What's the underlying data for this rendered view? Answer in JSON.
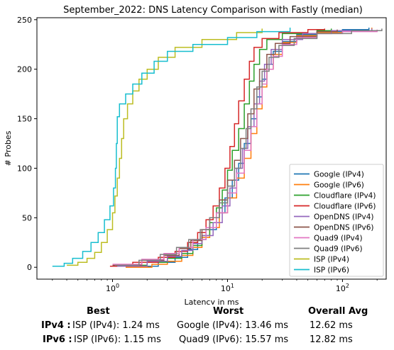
{
  "chart_data": {
    "type": "line",
    "title": "September_2022: DNS Latency Comparison with Fastly (median)",
    "xlabel": "Latency in ms",
    "ylabel": "# Probes",
    "xscale": "log",
    "xlim": [
      0.22,
      240
    ],
    "ylim": [
      -12,
      252
    ],
    "yticks": [
      0,
      50,
      100,
      150,
      200,
      250
    ],
    "xticks": [
      {
        "value": 1,
        "label": "10^0"
      },
      {
        "value": 10,
        "label": "10^1"
      },
      {
        "value": 100,
        "label": "10^2"
      }
    ],
    "grid": false,
    "legend_position": "lower-right",
    "series": [
      {
        "name": "Google (IPv4)",
        "color": "#1f77b4",
        "points": [
          [
            1.5,
            1
          ],
          [
            2.5,
            5
          ],
          [
            3.5,
            10
          ],
          [
            4.5,
            18
          ],
          [
            5.5,
            28
          ],
          [
            6.5,
            38
          ],
          [
            8,
            55
          ],
          [
            9.5,
            70
          ],
          [
            11,
            88
          ],
          [
            12.5,
            105
          ],
          [
            14,
            125
          ],
          [
            16,
            150
          ],
          [
            18,
            172
          ],
          [
            20,
            190
          ],
          [
            22,
            205
          ],
          [
            25,
            218
          ],
          [
            30,
            228
          ],
          [
            40,
            235
          ],
          [
            60,
            238
          ],
          [
            100,
            240
          ],
          [
            170,
            242
          ]
        ]
      },
      {
        "name": "Google (IPv6)",
        "color": "#ff7f0e",
        "points": [
          [
            1.3,
            0
          ],
          [
            2.2,
            3
          ],
          [
            3,
            6
          ],
          [
            4,
            12
          ],
          [
            5,
            20
          ],
          [
            6,
            30
          ],
          [
            7,
            40
          ],
          [
            8.5,
            55
          ],
          [
            10,
            70
          ],
          [
            12,
            90
          ],
          [
            14,
            110
          ],
          [
            16,
            135
          ],
          [
            18,
            160
          ],
          [
            20,
            182
          ],
          [
            22,
            200
          ],
          [
            25,
            215
          ],
          [
            30,
            227
          ],
          [
            40,
            234
          ],
          [
            60,
            237
          ],
          [
            100,
            239
          ],
          [
            180,
            242
          ]
        ]
      },
      {
        "name": "Cloudflare (IPv4)",
        "color": "#2ca02c",
        "points": [
          [
            1.2,
            2
          ],
          [
            2,
            5
          ],
          [
            3,
            9
          ],
          [
            4,
            14
          ],
          [
            5,
            22
          ],
          [
            6,
            32
          ],
          [
            7,
            45
          ],
          [
            8,
            60
          ],
          [
            9,
            78
          ],
          [
            10,
            98
          ],
          [
            11,
            118
          ],
          [
            12.5,
            140
          ],
          [
            14,
            165
          ],
          [
            15.5,
            188
          ],
          [
            17,
            205
          ],
          [
            19,
            220
          ],
          [
            22,
            230
          ],
          [
            30,
            236
          ],
          [
            60,
            239
          ],
          [
            80,
            241
          ]
        ]
      },
      {
        "name": "Cloudflare (IPv6)",
        "color": "#d62728",
        "points": [
          [
            0.95,
            1
          ],
          [
            1.5,
            5
          ],
          [
            2.5,
            10
          ],
          [
            3.5,
            16
          ],
          [
            4.5,
            25
          ],
          [
            5.5,
            35
          ],
          [
            6.5,
            48
          ],
          [
            7.5,
            62
          ],
          [
            8.5,
            80
          ],
          [
            9.5,
            100
          ],
          [
            10.5,
            122
          ],
          [
            11.5,
            145
          ],
          [
            12.5,
            168
          ],
          [
            14,
            190
          ],
          [
            15.5,
            208
          ],
          [
            17,
            222
          ],
          [
            20,
            231
          ],
          [
            28,
            237
          ],
          [
            50,
            240
          ],
          [
            70,
            241
          ]
        ]
      },
      {
        "name": "OpenDNS (IPv4)",
        "color": "#9467bd",
        "points": [
          [
            1.1,
            1
          ],
          [
            2,
            6
          ],
          [
            3,
            11
          ],
          [
            4,
            17
          ],
          [
            5,
            24
          ],
          [
            6,
            32
          ],
          [
            7.5,
            45
          ],
          [
            9,
            62
          ],
          [
            10.5,
            80
          ],
          [
            12,
            100
          ],
          [
            13.5,
            120
          ],
          [
            15,
            142
          ],
          [
            17,
            165
          ],
          [
            19,
            188
          ],
          [
            21,
            205
          ],
          [
            24,
            220
          ],
          [
            30,
            230
          ],
          [
            45,
            236
          ],
          [
            80,
            239
          ],
          [
            180,
            241
          ]
        ]
      },
      {
        "name": "OpenDNS (IPv6)",
        "color": "#8c564b",
        "points": [
          [
            1,
            2
          ],
          [
            1.8,
            7
          ],
          [
            2.8,
            12
          ],
          [
            3.8,
            19
          ],
          [
            4.8,
            27
          ],
          [
            6,
            38
          ],
          [
            7,
            50
          ],
          [
            8.5,
            68
          ],
          [
            10,
            88
          ],
          [
            11.5,
            108
          ],
          [
            13,
            130
          ],
          [
            15,
            155
          ],
          [
            17,
            180
          ],
          [
            19,
            200
          ],
          [
            22,
            215
          ],
          [
            26,
            226
          ],
          [
            35,
            233
          ],
          [
            60,
            238
          ],
          [
            90,
            240
          ]
        ]
      },
      {
        "name": "Quad9 (IPv4)",
        "color": "#e377c2",
        "points": [
          [
            1,
            3
          ],
          [
            1.8,
            8
          ],
          [
            2.8,
            14
          ],
          [
            3.8,
            20
          ],
          [
            5,
            28
          ],
          [
            6.5,
            40
          ],
          [
            8,
            55
          ],
          [
            10,
            75
          ],
          [
            12,
            95
          ],
          [
            14,
            118
          ],
          [
            16,
            142
          ],
          [
            18,
            165
          ],
          [
            20,
            185
          ],
          [
            22,
            200
          ],
          [
            25,
            213
          ],
          [
            30,
            225
          ],
          [
            40,
            232
          ],
          [
            60,
            236
          ],
          [
            100,
            238
          ],
          [
            200,
            240
          ]
        ]
      },
      {
        "name": "Quad9 (IPv6)",
        "color": "#7f7f7f",
        "points": [
          [
            1.05,
            2
          ],
          [
            1.7,
            7
          ],
          [
            2.6,
            13
          ],
          [
            3.6,
            20
          ],
          [
            4.6,
            28
          ],
          [
            5.8,
            38
          ],
          [
            7,
            50
          ],
          [
            8.5,
            65
          ],
          [
            10,
            82
          ],
          [
            11.5,
            100
          ],
          [
            13,
            120
          ],
          [
            14.5,
            140
          ],
          [
            16,
            160
          ],
          [
            18,
            182
          ],
          [
            20,
            198
          ],
          [
            23,
            212
          ],
          [
            28,
            224
          ],
          [
            38,
            231
          ],
          [
            60,
            236
          ],
          [
            120,
            239
          ],
          [
            220,
            241
          ]
        ]
      },
      {
        "name": "ISP (IPv4)",
        "color": "#bcbd22",
        "points": [
          [
            0.4,
            2
          ],
          [
            0.5,
            5
          ],
          [
            0.6,
            9
          ],
          [
            0.7,
            15
          ],
          [
            0.8,
            25
          ],
          [
            0.9,
            38
          ],
          [
            1,
            55
          ],
          [
            1.05,
            72
          ],
          [
            1.1,
            90
          ],
          [
            1.15,
            110
          ],
          [
            1.2,
            130
          ],
          [
            1.25,
            150
          ],
          [
            1.35,
            165
          ],
          [
            1.5,
            178
          ],
          [
            1.7,
            190
          ],
          [
            2,
            200
          ],
          [
            2.5,
            212
          ],
          [
            3.5,
            222
          ],
          [
            6,
            230
          ],
          [
            12,
            237
          ],
          [
            20,
            241
          ]
        ]
      },
      {
        "name": "ISP (IPv6)",
        "color": "#17becf",
        "points": [
          [
            0.3,
            1
          ],
          [
            0.38,
            4
          ],
          [
            0.45,
            9
          ],
          [
            0.55,
            16
          ],
          [
            0.65,
            25
          ],
          [
            0.75,
            35
          ],
          [
            0.85,
            48
          ],
          [
            0.95,
            62
          ],
          [
            1.02,
            80
          ],
          [
            1.06,
            100
          ],
          [
            1.08,
            125
          ],
          [
            1.1,
            152
          ],
          [
            1.15,
            165
          ],
          [
            1.3,
            175
          ],
          [
            1.5,
            185
          ],
          [
            1.8,
            196
          ],
          [
            2.3,
            208
          ],
          [
            3,
            218
          ],
          [
            5,
            225
          ],
          [
            10,
            232
          ],
          [
            18,
            238
          ],
          [
            35,
            242
          ]
        ]
      }
    ]
  },
  "summary": {
    "headers": {
      "best": "Best",
      "worst": "Worst",
      "avg": "Overall Avg"
    },
    "rows": [
      {
        "label": "IPv4 :",
        "best": "ISP (IPv4): 1.24 ms",
        "worst": "Google (IPv4): 13.46 ms",
        "avg": "12.62 ms"
      },
      {
        "label": "IPv6 :",
        "best": "ISP (IPv6): 1.15 ms",
        "worst": "Quad9 (IPv6): 15.57 ms",
        "avg": "12.82 ms"
      }
    ]
  }
}
